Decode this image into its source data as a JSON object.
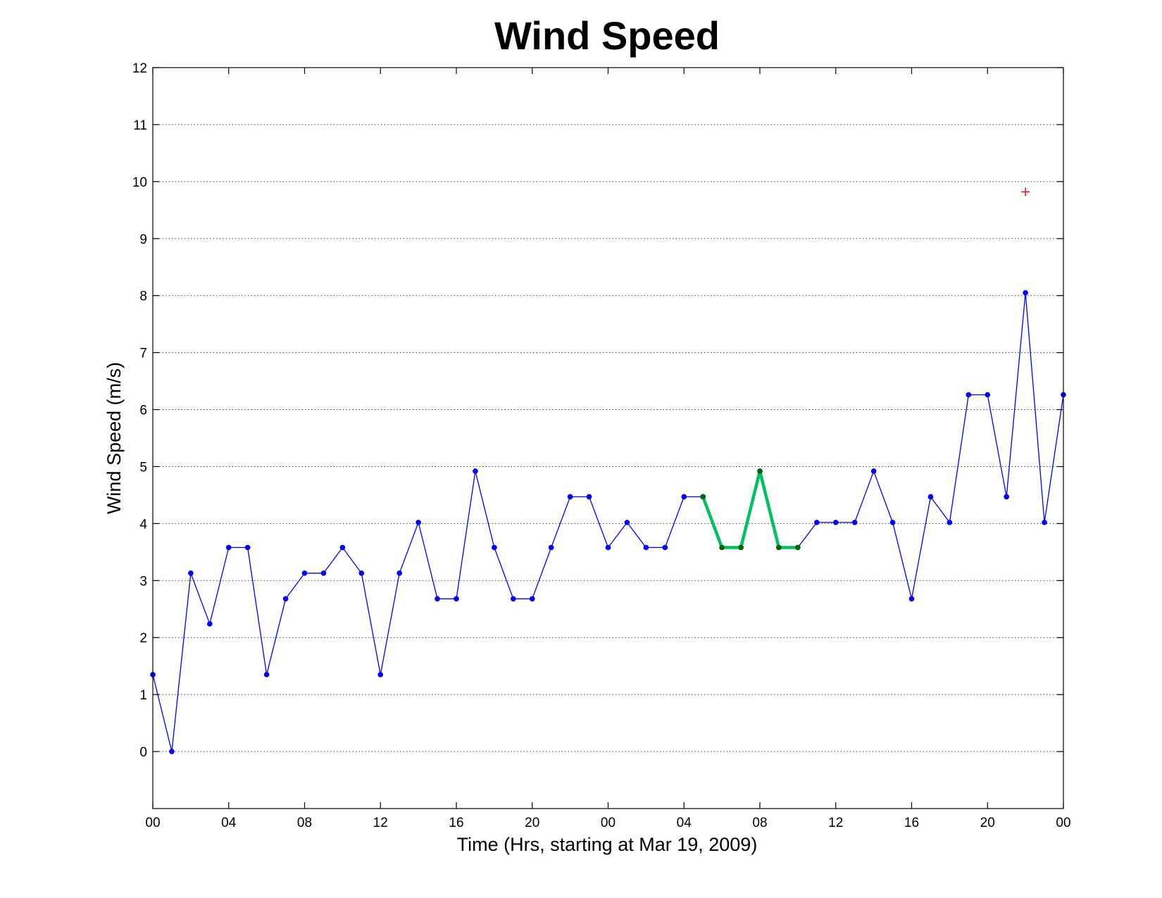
{
  "chart_data": {
    "type": "line",
    "title": "Wind Speed",
    "xlabel": "Time (Hrs, starting at Mar 19, 2009)",
    "ylabel": "Wind Speed (m/s)",
    "ylim": [
      -1,
      12
    ],
    "yticks": [
      0,
      1,
      2,
      3,
      4,
      5,
      6,
      7,
      8,
      9,
      10,
      11,
      12
    ],
    "xlim": [
      0,
      48
    ],
    "xticks": [
      0,
      4,
      8,
      12,
      16,
      20,
      24,
      28,
      32,
      36,
      40,
      44,
      48
    ],
    "xtick_labels": [
      "00",
      "04",
      "08",
      "12",
      "16",
      "20",
      "00",
      "04",
      "08",
      "12",
      "16",
      "20",
      "00"
    ],
    "grid": "y-dotted",
    "series": [
      {
        "color": "#0000ff",
        "marker": "dot",
        "x": [
          0,
          1,
          2,
          3,
          4,
          5,
          6,
          7,
          8,
          9,
          10,
          11,
          12,
          13,
          14,
          15,
          16,
          17,
          18,
          19,
          20,
          21,
          22,
          23,
          24,
          25,
          26,
          27,
          28,
          29,
          30,
          31,
          32,
          33,
          34,
          35,
          36,
          37,
          38,
          39,
          40,
          41,
          42,
          43,
          44,
          45,
          46,
          47,
          48
        ],
        "y": [
          1.35,
          0.0,
          3.13,
          2.24,
          3.58,
          3.58,
          1.35,
          2.68,
          3.13,
          3.13,
          3.58,
          3.13,
          1.35,
          3.13,
          4.02,
          2.68,
          2.68,
          4.92,
          3.58,
          2.68,
          2.68,
          3.58,
          4.47,
          4.47,
          3.58,
          4.02,
          3.58,
          3.58,
          4.47,
          4.47,
          3.58,
          3.58,
          4.92,
          3.58,
          3.58,
          4.02,
          4.02,
          4.02,
          4.92,
          4.02,
          2.68,
          4.47,
          4.02,
          6.26,
          6.26,
          4.47,
          8.05,
          4.02,
          6.26
        ]
      },
      {
        "color": "#00c060",
        "marker": "dot",
        "x": [
          29,
          30,
          31,
          32,
          33,
          34
        ],
        "y": [
          4.47,
          3.58,
          3.58,
          4.92,
          3.58,
          3.58
        ]
      },
      {
        "color": "#ff0000",
        "marker": "plus",
        "x": [
          46
        ],
        "y": [
          9.82
        ]
      }
    ]
  }
}
